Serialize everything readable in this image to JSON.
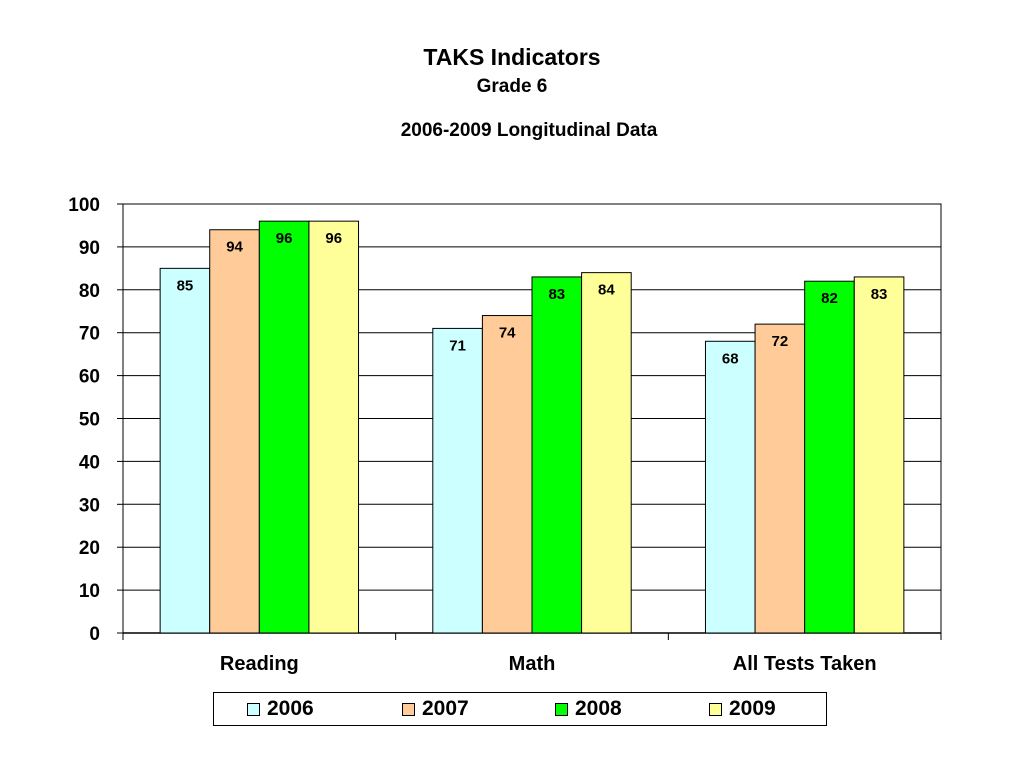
{
  "chart_data": {
    "type": "bar",
    "title": "TAKS Indicators",
    "subtitle": "Grade 6",
    "subtitle2": "2006-2009 Longitudinal Data",
    "categories": [
      "Reading",
      "Math",
      "All Tests Taken"
    ],
    "series": [
      {
        "name": "2006",
        "color": "#CCFFFF",
        "values": [
          85,
          71,
          68
        ]
      },
      {
        "name": "2007",
        "color": "#FFCC99",
        "values": [
          94,
          74,
          72
        ]
      },
      {
        "name": "2008",
        "color": "#00FF00",
        "values": [
          96,
          83,
          82
        ]
      },
      {
        "name": "2009",
        "color": "#FFFF99",
        "values": [
          96,
          84,
          83
        ]
      }
    ],
    "ylim": [
      0,
      100
    ],
    "yticks": [
      0,
      10,
      20,
      30,
      40,
      50,
      60,
      70,
      80,
      90,
      100
    ],
    "grid": true,
    "legend": "bottom",
    "xlabel": "",
    "ylabel": ""
  }
}
